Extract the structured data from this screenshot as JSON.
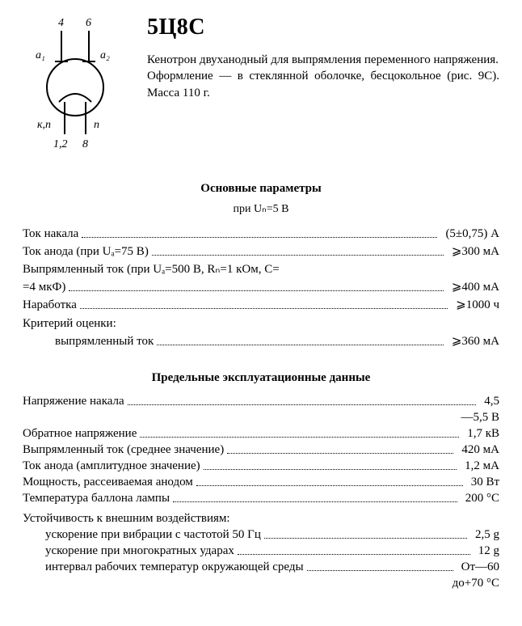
{
  "header": {
    "part": "5Ц8С",
    "desc1": "Кенотрон двуханодный для выпрямления переменного напряжения.",
    "desc2": "Оформление — в стеклянной оболочке, бесцокольное (рис. 9С). Масса 110 г."
  },
  "diagram": {
    "labels": {
      "top1": "4",
      "top2": "6",
      "a1": "a₁",
      "a2": "a₂",
      "kn": "к,п",
      "n": "п",
      "bot1": "1,2",
      "bot2": "8"
    },
    "stroke": "#000",
    "stroke_width": 2
  },
  "sections": {
    "main_params": {
      "title": "Основные параметры",
      "subtitle": "при Uₙ=5 В",
      "rows": [
        {
          "l": "Ток накала",
          "v": "(5±0,75) А"
        },
        {
          "l": "Ток анода (при Uₐ=75 В)",
          "v": "⩾300 мА"
        },
        {
          "l": "Выпрямленный ток (при Uₐ=500 В, Rₙ=1 кОм, C=\n=4 мкФ)",
          "v": "⩾400 мА"
        },
        {
          "l": "Наработка",
          "v": "⩾1000 ч"
        }
      ],
      "criterion_label": "Критерий оценки:",
      "criterion_rows": [
        {
          "l": "выпрямленный ток",
          "v": "⩾360 мА"
        }
      ]
    },
    "limits": {
      "title": "Предельные эксплуатационные данные",
      "rows": [
        {
          "l": "Напряжение накала",
          "v": "4,5\n—5,5 В"
        },
        {
          "l": "Обратное напряжение",
          "v": "1,7 кВ"
        },
        {
          "l": "Выпрямленный ток (среднее значение)",
          "v": "420 мА"
        },
        {
          "l": "Ток анода (амплитудное значение)",
          "v": "1,2 мА"
        },
        {
          "l": "Мощность, рассеиваемая анодом",
          "v": "30 Вт"
        },
        {
          "l": "Температура баллона лампы",
          "v": "200 °C"
        }
      ],
      "env_label": "Устойчивость к внешним воздействиям:",
      "env_rows": [
        {
          "l": "ускорение при вибрации с частотой 50 Гц",
          "v": "2,5 g"
        },
        {
          "l": "ускорение при многократных ударах",
          "v": "12 g"
        },
        {
          "l": "интервал рабочих температур окружающей среды",
          "v": "От—60\nдо+70 °C"
        }
      ]
    }
  }
}
